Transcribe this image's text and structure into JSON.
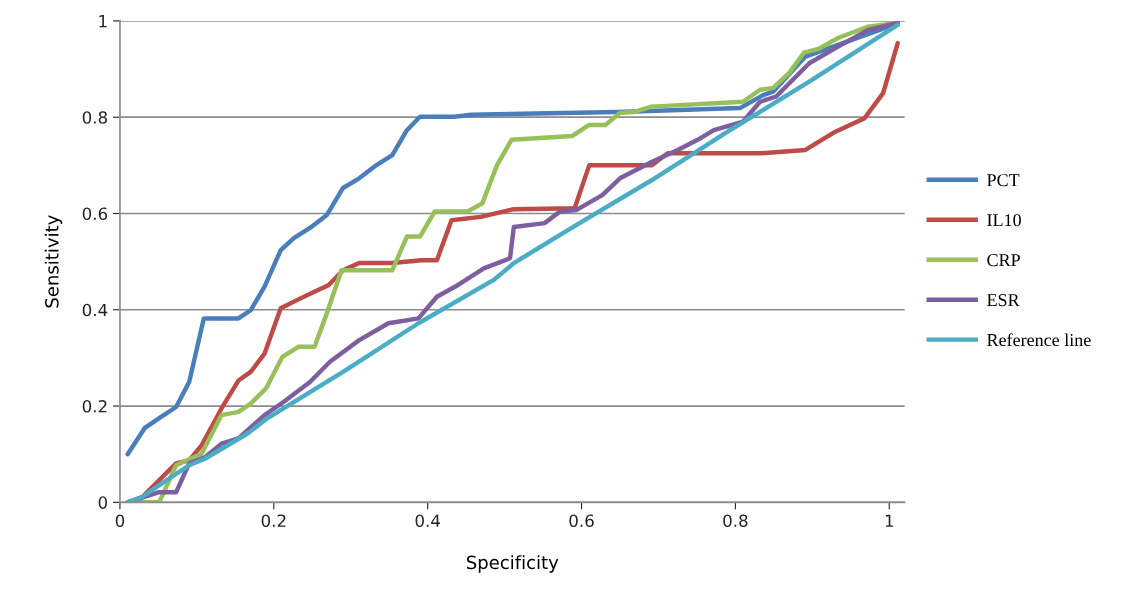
{
  "chart_data": {
    "type": "line",
    "xlabel": "Specificity",
    "ylabel": "Sensitivity",
    "xlim": [
      0,
      1.02
    ],
    "ylim": [
      0,
      1
    ],
    "xticks": [
      0,
      0.2,
      0.4,
      0.6,
      0.8,
      1
    ],
    "yticks": [
      0,
      0.2,
      0.4,
      0.6,
      0.8,
      1
    ],
    "grid": "y",
    "legend": "right",
    "marker": "none",
    "line_style": "solid",
    "series": [
      {
        "name": "PCT",
        "color": "#4a7ebb",
        "x": [
          0.01,
          0.032,
          0.051,
          0.073,
          0.09,
          0.109,
          0.154,
          0.17,
          0.188,
          0.209,
          0.226,
          0.247,
          0.269,
          0.29,
          0.311,
          0.333,
          0.354,
          0.373,
          0.39,
          0.435,
          0.456,
          0.648,
          0.806,
          0.836,
          0.849,
          0.891,
          1.011
        ],
        "values": [
          0.1,
          0.154,
          0.175,
          0.198,
          0.25,
          0.382,
          0.382,
          0.399,
          0.448,
          0.524,
          0.549,
          0.57,
          0.597,
          0.653,
          0.673,
          0.7,
          0.721,
          0.773,
          0.801,
          0.801,
          0.805,
          0.811,
          0.819,
          0.846,
          0.853,
          0.926,
          0.995
        ]
      },
      {
        "name": "IL10",
        "color": "#be4b48",
        "x": [
          0.01,
          0.029,
          0.073,
          0.09,
          0.106,
          0.132,
          0.154,
          0.17,
          0.188,
          0.209,
          0.23,
          0.252,
          0.271,
          0.29,
          0.311,
          0.354,
          0.392,
          0.412,
          0.431,
          0.469,
          0.512,
          0.591,
          0.61,
          0.691,
          0.712,
          0.832,
          0.891,
          0.93,
          0.968,
          0.992,
          1.011
        ],
        "values": [
          0,
          0.011,
          0.081,
          0.087,
          0.118,
          0.195,
          0.253,
          0.271,
          0.309,
          0.403,
          0.42,
          0.437,
          0.451,
          0.482,
          0.497,
          0.497,
          0.503,
          0.503,
          0.586,
          0.593,
          0.609,
          0.611,
          0.7,
          0.7,
          0.725,
          0.725,
          0.732,
          0.77,
          0.798,
          0.85,
          0.954
        ]
      },
      {
        "name": "CRP",
        "color": "#98c05a",
        "x": [
          0.01,
          0.051,
          0.073,
          0.106,
          0.132,
          0.154,
          0.17,
          0.19,
          0.211,
          0.232,
          0.253,
          0.269,
          0.288,
          0.354,
          0.373,
          0.39,
          0.409,
          0.452,
          0.471,
          0.49,
          0.509,
          0.588,
          0.61,
          0.631,
          0.65,
          0.669,
          0.691,
          0.81,
          0.832,
          0.849,
          0.87,
          0.889,
          0.908,
          0.934,
          0.972,
          1.011
        ],
        "values": [
          0,
          0,
          0.077,
          0.101,
          0.181,
          0.188,
          0.205,
          0.237,
          0.302,
          0.323,
          0.323,
          0.393,
          0.482,
          0.482,
          0.552,
          0.552,
          0.604,
          0.604,
          0.621,
          0.7,
          0.753,
          0.761,
          0.784,
          0.784,
          0.809,
          0.811,
          0.822,
          0.832,
          0.857,
          0.861,
          0.892,
          0.934,
          0.942,
          0.965,
          0.988,
          0.996
        ]
      },
      {
        "name": "ESR",
        "color": "#7d5fa0",
        "x": [
          0.01,
          0.051,
          0.073,
          0.09,
          0.111,
          0.132,
          0.154,
          0.188,
          0.213,
          0.247,
          0.273,
          0.311,
          0.349,
          0.388,
          0.412,
          0.439,
          0.473,
          0.507,
          0.512,
          0.552,
          0.572,
          0.593,
          0.627,
          0.65,
          0.691,
          0.725,
          0.751,
          0.772,
          0.81,
          0.832,
          0.853,
          0.896,
          0.934,
          0.972,
          1.011
        ],
        "values": [
          0,
          0.021,
          0.021,
          0.081,
          0.094,
          0.122,
          0.133,
          0.181,
          0.209,
          0.25,
          0.292,
          0.337,
          0.372,
          0.382,
          0.427,
          0.451,
          0.486,
          0.507,
          0.572,
          0.58,
          0.604,
          0.607,
          0.638,
          0.673,
          0.707,
          0.732,
          0.753,
          0.773,
          0.791,
          0.832,
          0.843,
          0.912,
          0.947,
          0.981,
          0.996
        ]
      },
      {
        "name": "Reference line",
        "color": "#4bacc6",
        "x": [
          0.01,
          0.029,
          0.055,
          0.09,
          0.111,
          0.166,
          0.192,
          0.29,
          0.388,
          0.486,
          0.512,
          0.593,
          0.691,
          0.793,
          0.896,
          1.011
        ],
        "values": [
          0,
          0.011,
          0.04,
          0.077,
          0.091,
          0.143,
          0.175,
          0.271,
          0.372,
          0.462,
          0.497,
          0.576,
          0.669,
          0.773,
          0.874,
          0.992
        ]
      }
    ]
  }
}
